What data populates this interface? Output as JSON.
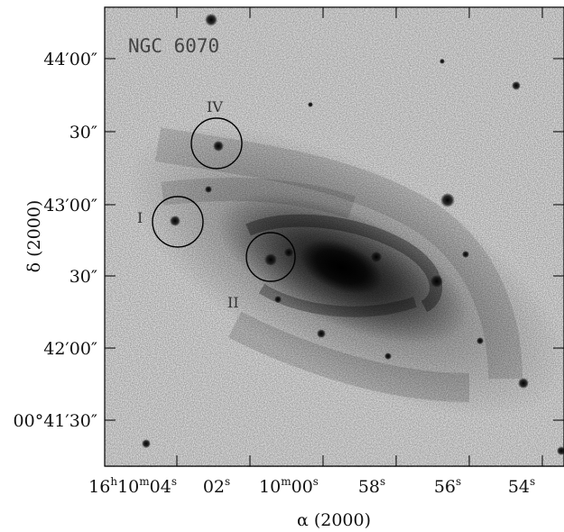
{
  "figure": {
    "object_name": "NGC 6070",
    "x_axis_title": "α (2000)",
    "y_axis_title": "δ (2000)",
    "x_ticks": [
      {
        "h": "16",
        "m": "10",
        "s": "04",
        "label_style": "full"
      },
      {
        "s": "02",
        "label_style": "sec"
      },
      {
        "m": "10",
        "s": "00",
        "label_style": "min"
      },
      {
        "s": "58",
        "label_style": "sec"
      },
      {
        "s": "56",
        "label_style": "sec"
      },
      {
        "s": "54",
        "label_style": "sec"
      }
    ],
    "y_ticks": [
      {
        "text": "44′00″"
      },
      {
        "text": "30″"
      },
      {
        "text": "43′00″"
      },
      {
        "text": "30″"
      },
      {
        "text": "42′00″"
      },
      {
        "text": "00°41′30″"
      }
    ],
    "regions": [
      {
        "label": "I"
      },
      {
        "label": "II"
      },
      {
        "label": "IV"
      }
    ]
  }
}
